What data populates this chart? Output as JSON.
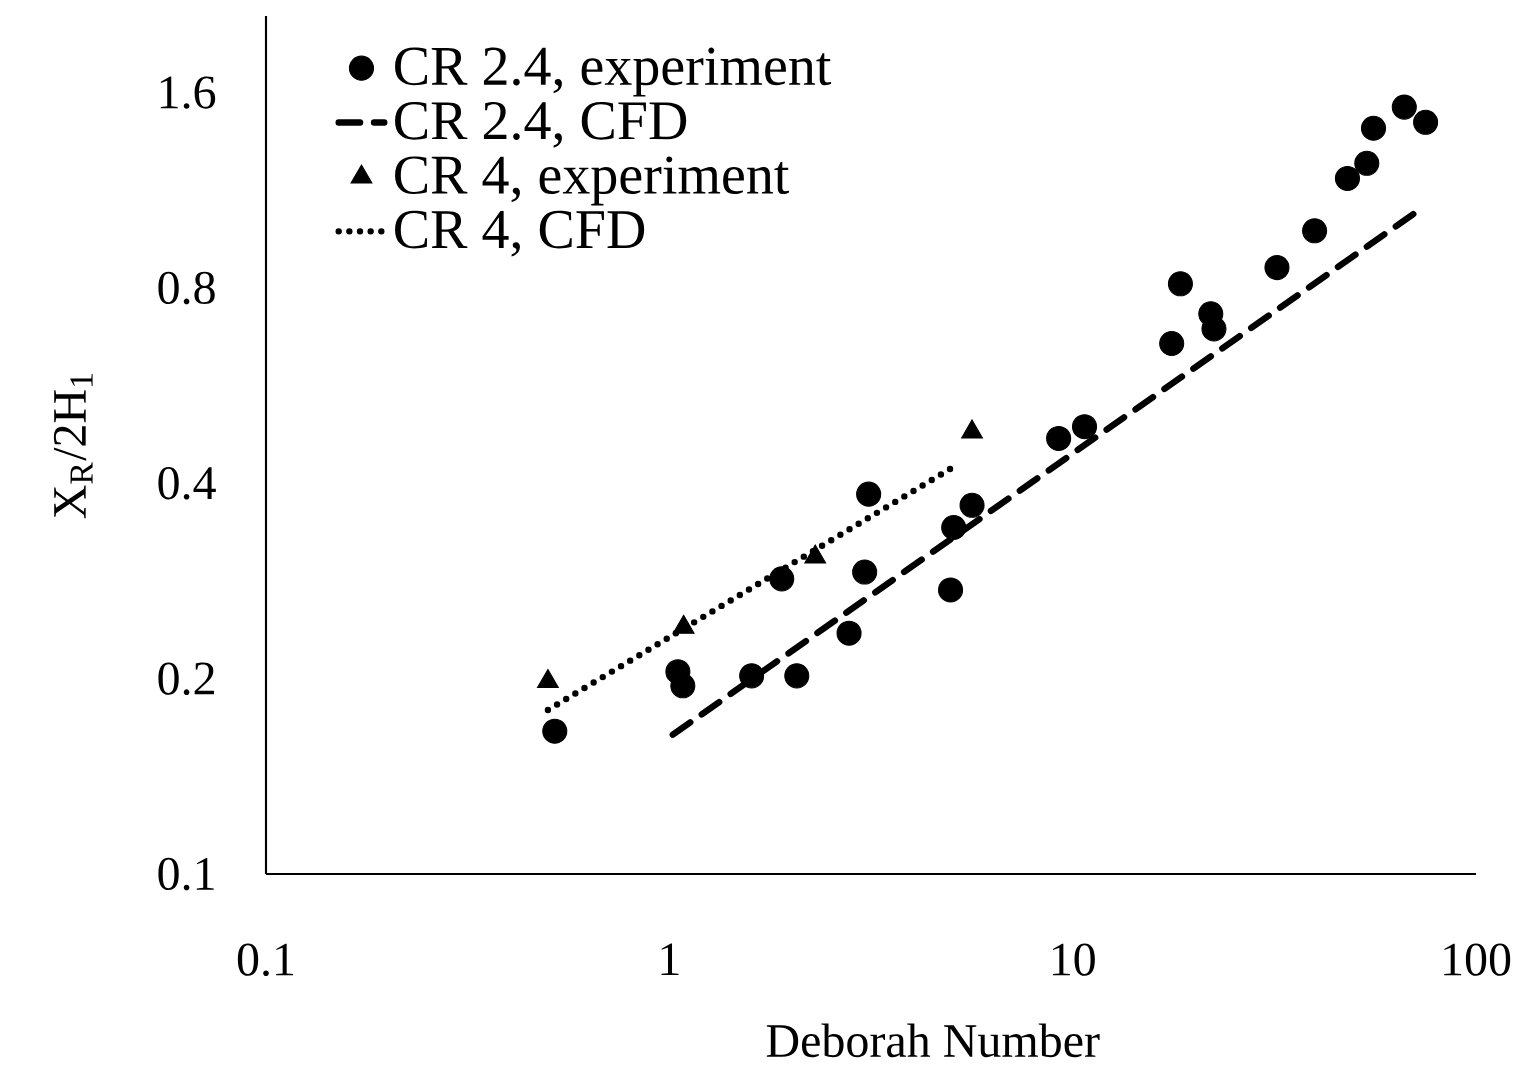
{
  "chart_data": {
    "type": "scatter",
    "xlabel": "Deborah Number",
    "ylabel": "X$_{R}$/2H$_{1}$",
    "log": "xy",
    "xlim": [
      0.1,
      100
    ],
    "ylim": [
      0.1,
      2.1
    ],
    "xticks": [
      0.1,
      1,
      10,
      100
    ],
    "yticks": [
      0.1,
      0.2,
      0.4,
      0.8,
      1.6
    ],
    "legend": "top left",
    "grid": false,
    "series": [
      {
        "name": "CR 2.4, experiment",
        "type": "scatter",
        "marker": "circle",
        "color": "#000000",
        "x": [
          0.52,
          1.05,
          1.08,
          1.6,
          2.07,
          2.79,
          1.9,
          3.05,
          3.12,
          4.98,
          5.07,
          5.63,
          9.23,
          10.7,
          17.6,
          18.5,
          22.0,
          22.4,
          32.1,
          39.8,
          48.0,
          53.6,
          55.7,
          66.4,
          72.8,
          75.0
        ],
        "values": [
          0.166,
          0.205,
          0.195,
          0.202,
          0.202,
          0.235,
          0.285,
          0.292,
          0.385,
          0.274,
          0.342,
          0.37,
          0.469,
          0.489,
          0.657,
          0.812,
          0.73,
          0.692,
          0.86,
          0.98,
          1.18,
          1.245,
          1.41,
          1.52,
          null,
          1.44
        ]
      },
      {
        "name": "CR 2.4, CFD",
        "type": "line",
        "line_style": "dashed",
        "color": "#000000",
        "x": [
          1.02,
          69.9
        ],
        "values": [
          0.164,
          1.04
        ]
      },
      {
        "name": "CR 4, experiment",
        "type": "scatter",
        "marker": "triangle",
        "color": "#000000",
        "x": [
          0.5,
          1.085,
          2.3,
          5.63
        ],
        "values": [
          0.198,
          0.24,
          0.308,
          0.48
        ]
      },
      {
        "name": "CR 4, CFD",
        "type": "line",
        "line_style": "dotted",
        "color": "#000000",
        "x": [
          0.5,
          5.23
        ],
        "values": [
          0.179,
          0.429
        ]
      }
    ]
  }
}
